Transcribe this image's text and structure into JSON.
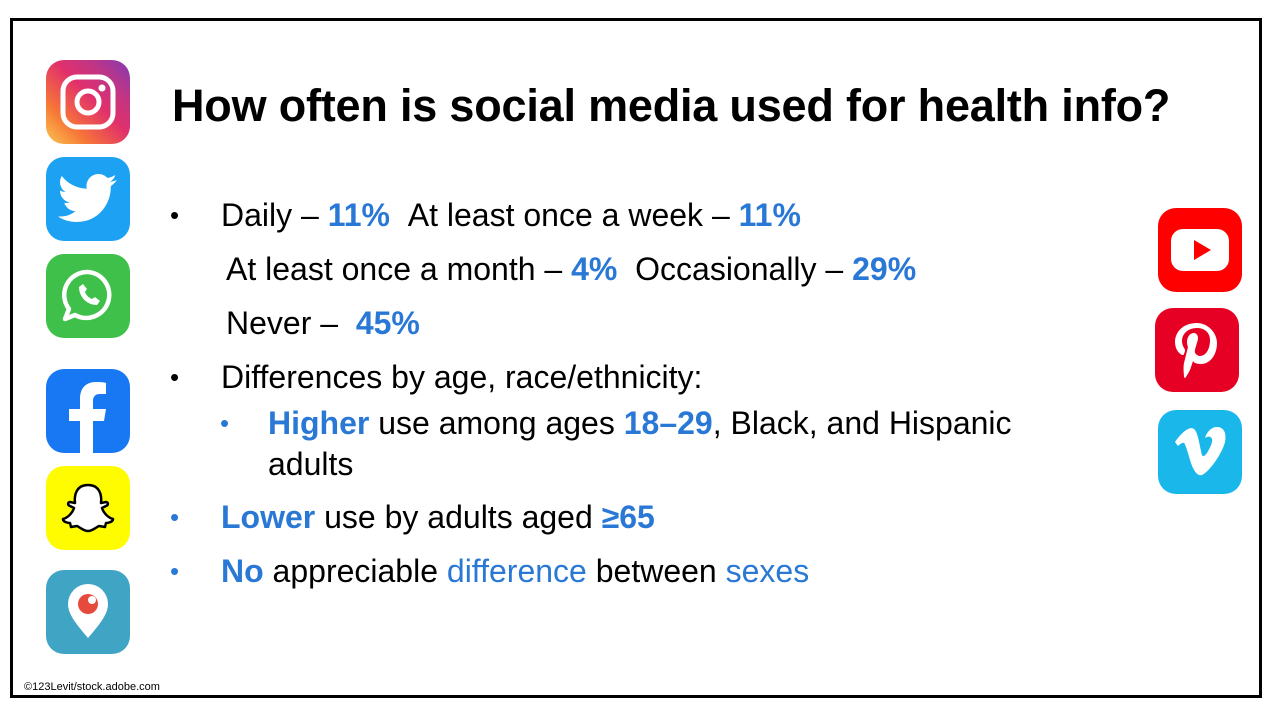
{
  "title": "How often is social media used for health info?",
  "freq": {
    "daily_label": "Daily – ",
    "daily_value": "11%",
    "week_label": "At least once a week – ",
    "week_value": "11%",
    "month_label": "At least once a month – ",
    "month_value": "4%",
    "occasionally_label": "Occasionally – ",
    "occasionally_value": "29%",
    "never_label": "Never – ",
    "never_value": "45%"
  },
  "differences": {
    "heading": "Differences by age, race/ethnicity:",
    "higher_word": "Higher",
    "higher_mid": " use among ages ",
    "higher_ages": "18–29",
    "higher_rest": ", Black, and Hispanic",
    "higher_cont": "adults",
    "lower_word": "Lower",
    "lower_rest": " use by adults aged ",
    "lower_age": "≥65",
    "no_word": "No",
    "no_mid": " appreciable ",
    "no_diff": "difference",
    "no_between": " between ",
    "no_sexes": "sexes"
  },
  "bullet_char": "•",
  "credit": "©123Levit/stock.adobe.com",
  "icons": [
    "instagram-icon",
    "twitter-icon",
    "whatsapp-icon",
    "facebook-icon",
    "snapchat-icon",
    "periscope-icon",
    "youtube-icon",
    "pinterest-icon",
    "vimeo-icon"
  ],
  "colors": {
    "accent": "#2a78d6",
    "twitter": "#1da1f2",
    "whatsapp": "#3ec04a",
    "facebook": "#1877f2",
    "snapchat": "#fffc00",
    "periscope": "#40a4c4",
    "youtube": "#ff0000",
    "pinterest": "#e60023",
    "vimeo": "#1ab7ea"
  }
}
